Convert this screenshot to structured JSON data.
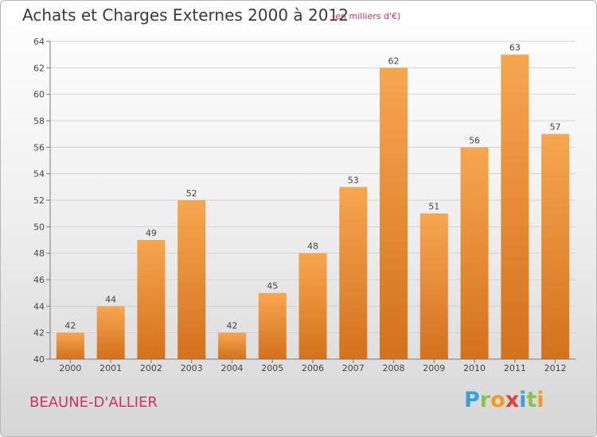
{
  "title": "Achats et Charges Externes 2000 à 2012",
  "subtitle": "(en milliers d'€)",
  "commune": "BEAUNE-D'ALLIER",
  "logo": {
    "letters": [
      "P",
      "r",
      "o",
      "x",
      "i",
      "t",
      "i"
    ],
    "colors": [
      "#3aa0d8",
      "#8bc34a",
      "#f29b1d",
      "#e2413a",
      "#3aa0d8",
      "#8bc34a",
      "#f29b1d"
    ]
  },
  "colors": {
    "bar_light": "#f7a650",
    "bar_dark": "#d4711c",
    "grid": "#d4d4d4",
    "axis": "#7a7a7a"
  },
  "chart_data": {
    "type": "bar",
    "categories": [
      "2000",
      "2001",
      "2002",
      "2003",
      "2004",
      "2005",
      "2006",
      "2007",
      "2008",
      "2009",
      "2010",
      "2011",
      "2012"
    ],
    "values": [
      42,
      44,
      49,
      52,
      42,
      45,
      48,
      53,
      62,
      51,
      56,
      63,
      57
    ],
    "ylim": [
      40,
      64
    ],
    "yticks": [
      40,
      42,
      44,
      46,
      48,
      50,
      52,
      54,
      56,
      58,
      60,
      62,
      64
    ],
    "grid": true,
    "data_labels": true
  }
}
